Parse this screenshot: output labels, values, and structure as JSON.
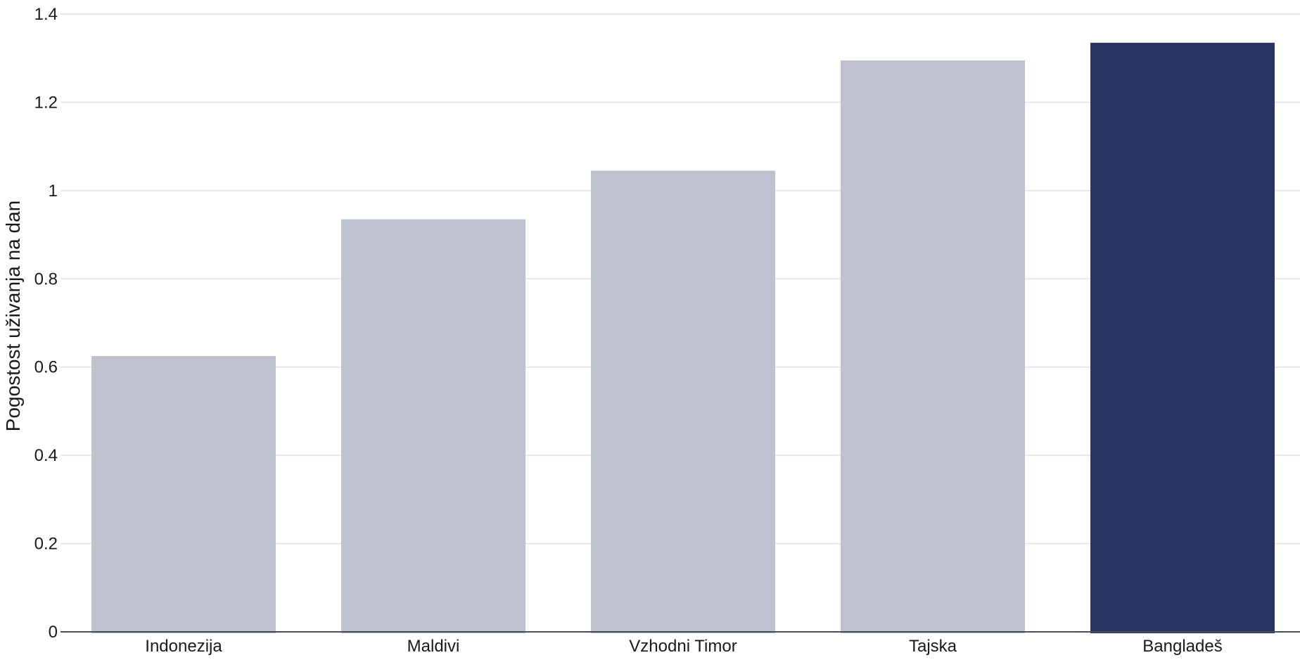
{
  "chart_data": {
    "type": "bar",
    "title": "",
    "xlabel": "",
    "ylabel": "Pogostost uživanja na dan",
    "categories": [
      "Indonezija",
      "Maldivi",
      "Vzhodni Timor",
      "Tajska",
      "Bangladeš"
    ],
    "values": [
      0.625,
      0.935,
      1.045,
      1.295,
      1.335
    ],
    "highlighted_category": "Bangladeš",
    "ylim": [
      0,
      1.4
    ],
    "yticks": [
      0,
      0.2,
      0.4,
      0.6,
      0.8,
      1,
      1.2,
      1.4
    ],
    "ytick_labels": [
      "0",
      "0.2",
      "0.4",
      "0.6",
      "0.8",
      "1",
      "1.2",
      "1.4"
    ],
    "grid": true,
    "legend": "none",
    "colors": {
      "bar": "#bec2cf",
      "highlight": "#293560",
      "gridline": "#e6e7eb",
      "baseline": "#4a4f5c",
      "text": "#1a1a1a"
    }
  }
}
